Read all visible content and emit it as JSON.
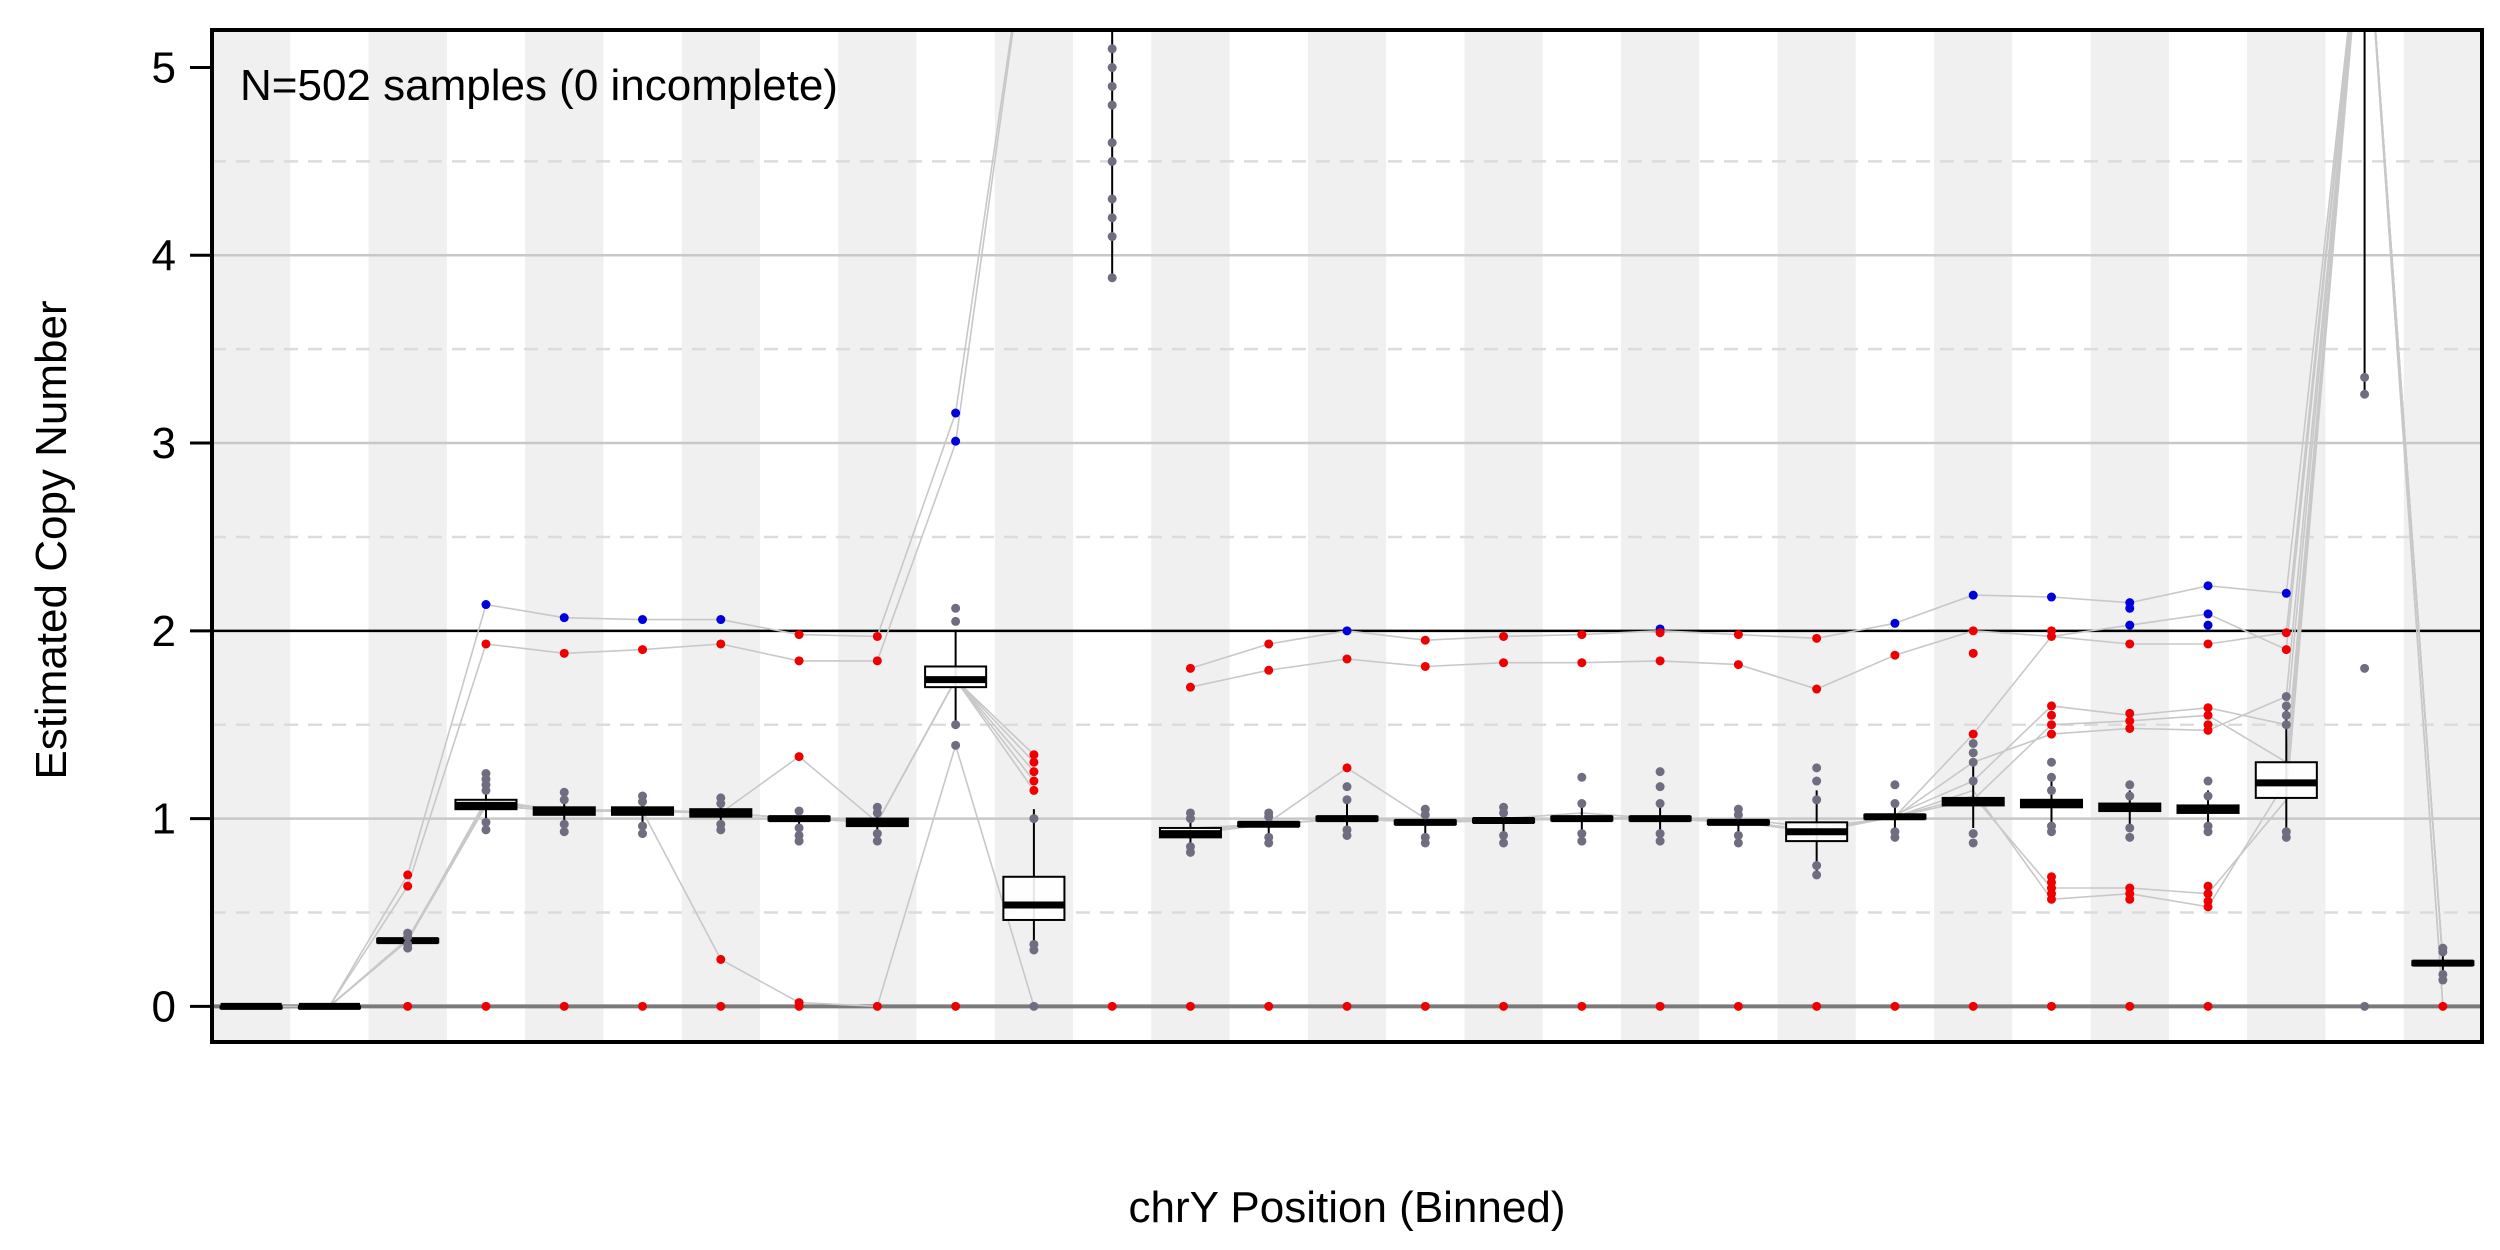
{
  "chart_data": {
    "type": "box",
    "title": "",
    "annotation": "N=502 samples (0 incomplete)",
    "xlabel": "chrY Position (Binned)",
    "ylabel": "Estimated Copy Number",
    "ylim": [
      -0.19,
      5.2
    ],
    "yticks": [
      0,
      1,
      2,
      3,
      4,
      5
    ],
    "ygrid_solid": [
      1,
      3,
      4
    ],
    "ygrid_dashed": [
      0.5,
      1.5,
      2.5,
      3.5,
      4.5
    ],
    "reference_line": 2,
    "bin_count": 29,
    "colors": {
      "band": "#f0f0f0",
      "median": "#000000",
      "box_outline": "#000000",
      "gray_point": "#6e6e80",
      "gain_point": "#0000dd",
      "loss_point": "#ee0000",
      "trace": "#c8c8c8",
      "grid": "#c8c8c8",
      "dashed_grid": "#dcdcdc"
    },
    "bins": [
      {
        "median": 0.0,
        "q1": 0.0,
        "q3": 0.0,
        "wlo": 0.0,
        "whi": 0.0,
        "gray": [],
        "blue": [],
        "red": []
      },
      {
        "median": 0.0,
        "q1": 0.0,
        "q3": 0.0,
        "wlo": 0.0,
        "whi": 0.0,
        "gray": [],
        "blue": [],
        "red": []
      },
      {
        "median": 0.35,
        "q1": 0.34,
        "q3": 0.36,
        "wlo": 0.32,
        "whi": 0.38,
        "gray": [
          0.31,
          0.33,
          0.37,
          0.39
        ],
        "blue": [],
        "red": [
          0.0,
          0.64,
          0.7
        ]
      },
      {
        "median": 1.07,
        "q1": 1.05,
        "q3": 1.1,
        "wlo": 0.95,
        "whi": 1.2,
        "gray": [
          0.94,
          0.98,
          1.15,
          1.18,
          1.21,
          1.24
        ],
        "blue": [
          2.14
        ],
        "red": [
          0.0,
          1.93
        ]
      },
      {
        "median": 1.04,
        "q1": 1.02,
        "q3": 1.06,
        "wlo": 0.95,
        "whi": 1.12,
        "gray": [
          0.93,
          0.97,
          1.1,
          1.14
        ],
        "blue": [
          2.07
        ],
        "red": [
          0.0,
          1.88
        ]
      },
      {
        "median": 1.04,
        "q1": 1.02,
        "q3": 1.06,
        "wlo": 0.95,
        "whi": 1.1,
        "gray": [
          0.92,
          0.96,
          1.09,
          1.12
        ],
        "blue": [
          2.06
        ],
        "red": [
          0.0,
          1.9
        ]
      },
      {
        "median": 1.03,
        "q1": 1.01,
        "q3": 1.05,
        "wlo": 0.95,
        "whi": 1.1,
        "gray": [
          0.94,
          0.97,
          1.08,
          1.11
        ],
        "blue": [
          2.06
        ],
        "red": [
          0.0,
          0.25,
          1.93
        ]
      },
      {
        "median": 1.0,
        "q1": 0.99,
        "q3": 1.01,
        "wlo": 0.9,
        "whi": 1.05,
        "gray": [
          0.88,
          0.91,
          0.95,
          1.04
        ],
        "blue": [],
        "red": [
          0.0,
          0.02,
          1.33,
          1.84,
          1.98
        ]
      },
      {
        "median": 0.98,
        "q1": 0.96,
        "q3": 1.0,
        "wlo": 0.9,
        "whi": 1.05,
        "gray": [
          0.88,
          0.92,
          1.03,
          1.06
        ],
        "blue": [],
        "red": [
          0.0,
          1.84,
          1.97
        ]
      },
      {
        "median": 1.74,
        "q1": 1.7,
        "q3": 1.81,
        "wlo": 1.52,
        "whi": 2.0,
        "gray": [
          1.39,
          1.5,
          2.05,
          2.12
        ],
        "blue": [
          3.01,
          3.16
        ],
        "red": [
          0.0
        ]
      },
      {
        "median": 0.54,
        "q1": 0.46,
        "q3": 0.69,
        "wlo": 0.28,
        "whi": 1.05,
        "gray": [
          0.0,
          0.3,
          0.33,
          1.0
        ],
        "blue": [],
        "red": [
          1.15,
          1.2,
          1.25,
          1.3,
          1.34
        ]
      },
      {
        "median": null,
        "q1": null,
        "q3": null,
        "wlo": 3.87,
        "whi": 5.6,
        "gray": [
          3.88,
          4.1,
          4.2,
          4.3,
          4.5,
          4.6,
          4.8,
          4.9,
          5.0,
          5.1
        ],
        "blue": [],
        "red": [
          0.0
        ]
      },
      {
        "median": 0.92,
        "q1": 0.9,
        "q3": 0.95,
        "wlo": 0.83,
        "whi": 1.02,
        "gray": [
          0.82,
          0.85,
          1.0,
          1.03
        ],
        "blue": [],
        "red": [
          0.0,
          1.7,
          1.8
        ]
      },
      {
        "median": 0.97,
        "q1": 0.96,
        "q3": 0.98,
        "wlo": 0.88,
        "whi": 1.03,
        "gray": [
          0.87,
          0.9,
          1.01,
          1.03
        ],
        "blue": [],
        "red": [
          0.0,
          1.79,
          1.93
        ]
      },
      {
        "median": 1.0,
        "q1": 0.99,
        "q3": 1.01,
        "wlo": 0.92,
        "whi": 1.08,
        "gray": [
          0.91,
          0.94,
          1.1,
          1.17
        ],
        "blue": [
          2.0
        ],
        "red": [
          0.0,
          1.27,
          1.85
        ]
      },
      {
        "median": 0.98,
        "q1": 0.97,
        "q3": 0.99,
        "wlo": 0.9,
        "whi": 1.04,
        "gray": [
          0.87,
          0.9,
          1.02,
          1.05
        ],
        "blue": [],
        "red": [
          0.0,
          1.81,
          1.95
        ]
      },
      {
        "median": 0.99,
        "q1": 0.98,
        "q3": 1.0,
        "wlo": 0.9,
        "whi": 1.05,
        "gray": [
          0.87,
          0.91,
          1.03,
          1.06
        ],
        "blue": [],
        "red": [
          0.0,
          1.83,
          1.97
        ]
      },
      {
        "median": 1.0,
        "q1": 0.99,
        "q3": 1.01,
        "wlo": 0.9,
        "whi": 1.1,
        "gray": [
          0.88,
          0.92,
          1.08,
          1.22
        ],
        "blue": [],
        "red": [
          0.0,
          1.83,
          1.98
        ]
      },
      {
        "median": 1.0,
        "q1": 0.99,
        "q3": 1.01,
        "wlo": 0.9,
        "whi": 1.1,
        "gray": [
          0.88,
          0.92,
          1.08,
          1.17,
          1.25
        ],
        "blue": [
          2.01
        ],
        "red": [
          0.0,
          1.84,
          1.99
        ]
      },
      {
        "median": 0.98,
        "q1": 0.97,
        "q3": 0.99,
        "wlo": 0.9,
        "whi": 1.04,
        "gray": [
          0.87,
          0.91,
          1.02,
          1.05
        ],
        "blue": [],
        "red": [
          0.0,
          1.82,
          1.98
        ]
      },
      {
        "median": 0.93,
        "q1": 0.88,
        "q3": 0.98,
        "wlo": 0.72,
        "whi": 1.15,
        "gray": [
          0.7,
          0.75,
          1.1,
          1.2,
          1.27
        ],
        "blue": [],
        "red": [
          0.0,
          1.69,
          1.96
        ]
      },
      {
        "median": 1.01,
        "q1": 1.0,
        "q3": 1.02,
        "wlo": 0.92,
        "whi": 1.1,
        "gray": [
          0.9,
          0.93,
          1.08,
          1.18
        ],
        "blue": [
          2.04
        ],
        "red": [
          0.0,
          1.87
        ]
      },
      {
        "median": 1.09,
        "q1": 1.07,
        "q3": 1.11,
        "wlo": 0.95,
        "whi": 1.3,
        "gray": [
          0.87,
          0.92,
          1.2,
          1.3,
          1.35,
          1.4
        ],
        "blue": [
          2.19
        ],
        "red": [
          0.0,
          1.45,
          1.88,
          2.0
        ]
      },
      {
        "median": 1.08,
        "q1": 1.06,
        "q3": 1.1,
        "wlo": 0.95,
        "whi": 1.2,
        "gray": [
          0.93,
          0.96,
          1.15,
          1.22,
          1.3
        ],
        "blue": [
          2.18
        ],
        "red": [
          0.0,
          0.57,
          0.6,
          0.63,
          0.66,
          0.69,
          1.45,
          1.5,
          1.55,
          1.6,
          1.97,
          2.0
        ]
      },
      {
        "median": 1.06,
        "q1": 1.04,
        "q3": 1.08,
        "wlo": 0.95,
        "whi": 1.15,
        "gray": [
          0.9,
          0.95,
          1.12,
          1.18
        ],
        "blue": [
          2.03,
          2.12,
          2.15
        ],
        "red": [
          0.0,
          0.57,
          0.6,
          0.63,
          1.48,
          1.52,
          1.56,
          1.93
        ]
      },
      {
        "median": 1.05,
        "q1": 1.03,
        "q3": 1.07,
        "wlo": 0.95,
        "whi": 1.15,
        "gray": [
          0.93,
          0.96,
          1.12,
          1.2
        ],
        "blue": [
          2.03,
          2.09,
          2.24
        ],
        "red": [
          0.0,
          0.53,
          0.56,
          0.6,
          0.64,
          1.47,
          1.5,
          1.55,
          1.59,
          1.93
        ]
      },
      {
        "median": 1.19,
        "q1": 1.11,
        "q3": 1.3,
        "wlo": 0.9,
        "whi": 1.6,
        "gray": [
          0.9,
          0.93,
          1.5,
          1.55,
          1.6,
          1.65
        ],
        "blue": [
          2.2
        ],
        "red": [
          1.9,
          1.99
        ]
      },
      {
        "median": null,
        "q1": null,
        "q3": null,
        "wlo": 3.25,
        "whi": 5.2,
        "gray": [
          0.0,
          1.8,
          3.26,
          3.35
        ],
        "blue": [],
        "red": []
      },
      {
        "median": 0.23,
        "q1": 0.22,
        "q3": 0.24,
        "wlo": 0.15,
        "whi": 0.31,
        "gray": [
          0.14,
          0.17,
          0.29,
          0.31
        ],
        "blue": [],
        "red": [
          0.0
        ]
      }
    ],
    "traces": [
      [
        0,
        0,
        0.64,
        1.93,
        1.88,
        1.9,
        1.93,
        1.84,
        1.84,
        3.0,
        6,
        null,
        1.8,
        1.93,
        2.0,
        1.95,
        1.97,
        1.98,
        2.0,
        1.98,
        1.96,
        2.04,
        2.19,
        2.18,
        2.15,
        2.24,
        2.2,
        6,
        0
      ],
      [
        0,
        0,
        0.7,
        2.14,
        2.07,
        2.06,
        2.06,
        1.98,
        1.97,
        3.16,
        6,
        null,
        1.7,
        1.79,
        1.85,
        1.81,
        1.83,
        1.83,
        1.84,
        1.82,
        1.69,
        1.87,
        2.0,
        1.97,
        1.93,
        1.93,
        1.99,
        6,
        0
      ],
      [
        0,
        0,
        0.36,
        1.08,
        1.05,
        1.04,
        0.25,
        0.02,
        0.0,
        1.39,
        0.0,
        null,
        0.93,
        0.98,
        1.27,
        1.0,
        1.0,
        1.03,
        1.0,
        1.0,
        0.95,
        1.01,
        1.45,
        1.97,
        2.03,
        2.09,
        1.9,
        6,
        0.23
      ],
      [
        0,
        0,
        0.35,
        1.1,
        1.04,
        1.05,
        1.03,
        1.33,
        0.98,
        1.74,
        1.3,
        null,
        0.95,
        0.97,
        1.0,
        0.98,
        1.0,
        1.0,
        1.01,
        0.99,
        0.93,
        1.02,
        1.2,
        1.6,
        1.55,
        1.59,
        1.5,
        6,
        0.23
      ],
      [
        0,
        0,
        0.35,
        1.07,
        1.04,
        1.04,
        1.03,
        1.0,
        0.98,
        1.74,
        1.34,
        null,
        0.92,
        0.97,
        1.0,
        0.98,
        0.99,
        1.0,
        1.0,
        0.98,
        0.93,
        1.01,
        1.15,
        0.57,
        0.6,
        0.53,
        1.2,
        6,
        0.23
      ],
      [
        0,
        0,
        0.35,
        1.07,
        1.04,
        1.04,
        1.03,
        1.0,
        0.98,
        1.74,
        1.2,
        null,
        0.92,
        0.97,
        1.0,
        0.98,
        0.99,
        1.0,
        1.0,
        0.98,
        0.93,
        1.01,
        1.12,
        0.63,
        0.63,
        0.6,
        1.1,
        6,
        0.23
      ],
      [
        0,
        0,
        0.35,
        1.07,
        1.04,
        1.04,
        1.03,
        1.0,
        0.98,
        1.74,
        1.15,
        null,
        0.92,
        0.97,
        1.0,
        0.98,
        0.99,
        1.0,
        1.0,
        0.98,
        0.93,
        1.01,
        1.1,
        1.5,
        1.52,
        1.55,
        1.3,
        6,
        0.23
      ],
      [
        0,
        0,
        0.35,
        1.07,
        1.04,
        1.04,
        1.03,
        1.0,
        0.98,
        1.74,
        1.25,
        null,
        0.92,
        0.97,
        1.0,
        0.98,
        0.99,
        1.0,
        1.0,
        0.98,
        0.93,
        1.01,
        1.3,
        1.45,
        1.48,
        1.47,
        1.65,
        6,
        0.23
      ]
    ]
  }
}
